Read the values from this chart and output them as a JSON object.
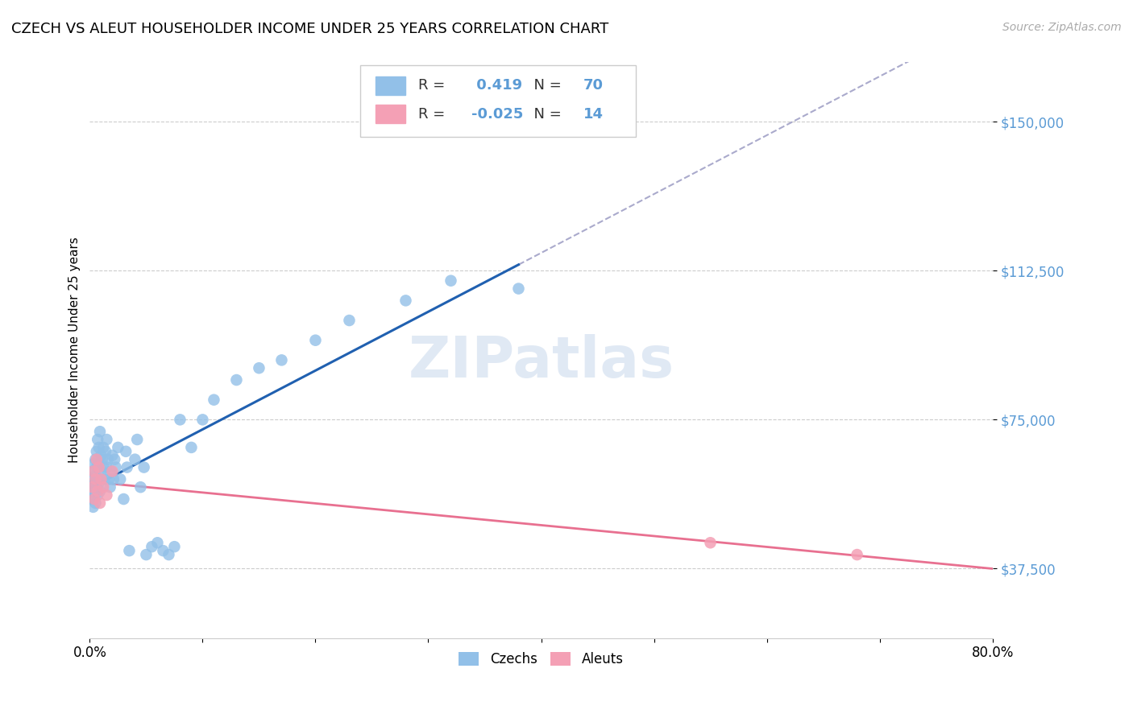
{
  "title": "CZECH VS ALEUT HOUSEHOLDER INCOME UNDER 25 YEARS CORRELATION CHART",
  "source": "Source: ZipAtlas.com",
  "ylabel": "Householder Income Under 25 years",
  "legend_bottom": [
    "Czechs",
    "Aleuts"
  ],
  "czech_color": "#92C0E8",
  "aleut_color": "#F4A0B5",
  "czech_line_color": "#2060B0",
  "aleut_line_color": "#E87090",
  "czech_R": 0.419,
  "czech_N": 70,
  "aleut_R": -0.025,
  "aleut_N": 14,
  "watermark": "ZIPatlas",
  "yticks": [
    37500,
    75000,
    112500,
    150000
  ],
  "ytick_labels": [
    "$37,500",
    "$75,000",
    "$112,500",
    "$150,000"
  ],
  "xmin": 0.0,
  "xmax": 0.8,
  "ymin": 20000,
  "ymax": 165000,
  "czech_x": [
    0.001,
    0.002,
    0.002,
    0.003,
    0.003,
    0.003,
    0.004,
    0.004,
    0.004,
    0.005,
    0.005,
    0.005,
    0.005,
    0.006,
    0.006,
    0.006,
    0.007,
    0.007,
    0.007,
    0.008,
    0.008,
    0.008,
    0.009,
    0.009,
    0.01,
    0.01,
    0.011,
    0.011,
    0.012,
    0.012,
    0.013,
    0.014,
    0.015,
    0.015,
    0.016,
    0.017,
    0.018,
    0.019,
    0.02,
    0.021,
    0.022,
    0.023,
    0.025,
    0.027,
    0.03,
    0.032,
    0.033,
    0.035,
    0.04,
    0.042,
    0.045,
    0.048,
    0.05,
    0.055,
    0.06,
    0.065,
    0.07,
    0.075,
    0.08,
    0.09,
    0.1,
    0.11,
    0.13,
    0.15,
    0.17,
    0.2,
    0.23,
    0.28,
    0.32,
    0.38
  ],
  "czech_y": [
    57000,
    55000,
    60000,
    53000,
    58000,
    62000,
    56000,
    59000,
    64000,
    57000,
    61000,
    65000,
    54000,
    58000,
    63000,
    67000,
    56000,
    60000,
    70000,
    59000,
    64000,
    68000,
    57000,
    72000,
    62000,
    66000,
    60000,
    65000,
    63000,
    68000,
    60000,
    67000,
    63000,
    70000,
    65000,
    60000,
    58000,
    62000,
    66000,
    60000,
    65000,
    63000,
    68000,
    60000,
    55000,
    67000,
    63000,
    42000,
    65000,
    70000,
    58000,
    63000,
    41000,
    43000,
    44000,
    42000,
    41000,
    43000,
    75000,
    68000,
    75000,
    80000,
    85000,
    88000,
    90000,
    95000,
    100000,
    105000,
    110000,
    108000
  ],
  "aleut_x": [
    0.002,
    0.003,
    0.004,
    0.005,
    0.006,
    0.007,
    0.008,
    0.009,
    0.01,
    0.012,
    0.015,
    0.02,
    0.55,
    0.68
  ],
  "aleut_y": [
    58000,
    62000,
    55000,
    60000,
    65000,
    57000,
    63000,
    54000,
    60000,
    58000,
    56000,
    62000,
    44000,
    41000
  ]
}
